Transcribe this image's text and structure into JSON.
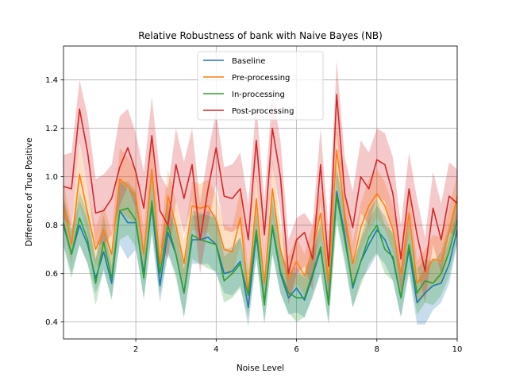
{
  "chart_data": {
    "type": "line",
    "title": "Relative Robustness of bank with Naive Bayes (NB)",
    "xlabel": "Noise Level",
    "ylabel": "Difference of True Positive",
    "xlim": [
      0.2,
      10.0
    ],
    "ylim": [
      0.33,
      1.54
    ],
    "xticks": [
      2,
      4,
      6,
      8,
      10
    ],
    "yticks": [
      0.4,
      0.6,
      0.8,
      1.0,
      1.2,
      1.4
    ],
    "grid": true,
    "legend_position": "top-center",
    "x": [
      0.2,
      0.4,
      0.6,
      0.8,
      1.0,
      1.2,
      1.4,
      1.6,
      1.8,
      2.0,
      2.2,
      2.4,
      2.6,
      2.8,
      3.0,
      3.2,
      3.4,
      3.6,
      3.8,
      4.0,
      4.2,
      4.4,
      4.6,
      4.8,
      5.0,
      5.2,
      5.4,
      5.6,
      5.8,
      6.0,
      6.2,
      6.4,
      6.6,
      6.8,
      7.0,
      7.2,
      7.4,
      7.6,
      7.8,
      8.0,
      8.2,
      8.4,
      8.6,
      8.8,
      9.0,
      9.2,
      9.4,
      9.6,
      9.8,
      10.0
    ],
    "series": [
      {
        "name": "Baseline",
        "color": "#1f77b4",
        "values": [
          0.8,
          0.68,
          0.8,
          0.72,
          0.58,
          0.69,
          0.56,
          0.86,
          0.81,
          0.81,
          0.6,
          0.88,
          0.55,
          0.77,
          0.68,
          0.52,
          0.74,
          0.74,
          0.75,
          0.72,
          0.6,
          0.61,
          0.65,
          0.46,
          0.76,
          0.48,
          0.79,
          0.6,
          0.5,
          0.54,
          0.49,
          0.59,
          0.7,
          0.48,
          0.94,
          0.76,
          0.54,
          0.65,
          0.72,
          0.78,
          0.74,
          0.66,
          0.5,
          0.7,
          0.48,
          0.52,
          0.55,
          0.56,
          0.64,
          0.78
        ],
        "lower": [
          0.72,
          0.6,
          0.72,
          0.64,
          0.52,
          0.61,
          0.5,
          0.72,
          0.66,
          0.7,
          0.5,
          0.76,
          0.48,
          0.68,
          0.6,
          0.42,
          0.64,
          0.64,
          0.64,
          0.6,
          0.52,
          0.51,
          0.55,
          0.38,
          0.66,
          0.4,
          0.68,
          0.52,
          0.43,
          0.44,
          0.42,
          0.5,
          0.6,
          0.4,
          0.83,
          0.66,
          0.46,
          0.57,
          0.62,
          0.68,
          0.64,
          0.57,
          0.42,
          0.6,
          0.39,
          0.39,
          0.45,
          0.48,
          0.56,
          0.72
        ],
        "upper": [
          0.9,
          0.78,
          0.9,
          0.82,
          0.66,
          0.79,
          0.63,
          0.98,
          0.95,
          0.93,
          0.72,
          1.0,
          0.63,
          0.87,
          0.78,
          0.62,
          0.84,
          0.84,
          0.86,
          0.84,
          0.7,
          0.71,
          0.75,
          0.55,
          0.86,
          0.58,
          0.9,
          0.7,
          0.6,
          0.63,
          0.58,
          0.68,
          0.8,
          0.57,
          1.04,
          0.86,
          0.63,
          0.74,
          0.82,
          0.88,
          0.84,
          0.76,
          0.58,
          0.8,
          0.57,
          0.62,
          0.66,
          0.64,
          0.74,
          0.86
        ]
      },
      {
        "name": "Pre-processing",
        "color": "#ff7f0e",
        "values": [
          0.88,
          0.72,
          1.01,
          0.85,
          0.7,
          0.78,
          0.68,
          0.99,
          0.96,
          0.92,
          0.68,
          1.03,
          0.64,
          0.92,
          0.8,
          0.64,
          0.88,
          0.87,
          0.88,
          0.82,
          0.7,
          0.69,
          0.83,
          0.52,
          0.91,
          0.56,
          0.95,
          0.7,
          0.58,
          0.65,
          0.59,
          0.7,
          0.85,
          0.57,
          1.11,
          0.85,
          0.64,
          0.79,
          0.88,
          0.93,
          0.88,
          0.78,
          0.6,
          0.85,
          0.56,
          0.6,
          0.66,
          0.65,
          0.77,
          0.92
        ],
        "lower": [
          0.79,
          0.64,
          0.89,
          0.76,
          0.62,
          0.69,
          0.6,
          0.86,
          0.83,
          0.81,
          0.58,
          0.9,
          0.55,
          0.81,
          0.7,
          0.55,
          0.78,
          0.77,
          0.77,
          0.71,
          0.61,
          0.59,
          0.72,
          0.44,
          0.8,
          0.47,
          0.83,
          0.61,
          0.5,
          0.56,
          0.51,
          0.6,
          0.74,
          0.49,
          0.98,
          0.75,
          0.55,
          0.69,
          0.77,
          0.83,
          0.78,
          0.69,
          0.52,
          0.75,
          0.47,
          0.51,
          0.56,
          0.56,
          0.68,
          0.83
        ],
        "upper": [
          0.98,
          0.81,
          1.13,
          0.95,
          0.79,
          0.88,
          0.77,
          1.12,
          1.08,
          1.03,
          0.78,
          1.16,
          0.74,
          1.03,
          0.9,
          0.74,
          0.98,
          0.97,
          0.99,
          0.93,
          0.8,
          0.79,
          0.94,
          0.61,
          1.02,
          0.66,
          1.07,
          0.8,
          0.67,
          0.75,
          0.68,
          0.8,
          0.95,
          0.66,
          1.22,
          0.96,
          0.73,
          0.89,
          0.99,
          1.03,
          0.98,
          0.88,
          0.69,
          0.95,
          0.65,
          0.7,
          0.76,
          0.75,
          0.87,
          1.01
        ]
      },
      {
        "name": "In-processing",
        "color": "#2ca02c",
        "values": [
          0.81,
          0.68,
          0.83,
          0.74,
          0.56,
          0.73,
          0.58,
          0.86,
          0.87,
          0.82,
          0.58,
          0.9,
          0.6,
          0.8,
          0.68,
          0.52,
          0.76,
          0.74,
          0.73,
          0.72,
          0.57,
          0.6,
          0.64,
          0.51,
          0.78,
          0.47,
          0.8,
          0.61,
          0.52,
          0.5,
          0.5,
          0.6,
          0.71,
          0.47,
          0.92,
          0.74,
          0.55,
          0.65,
          0.75,
          0.8,
          0.7,
          0.67,
          0.5,
          0.72,
          0.52,
          0.57,
          0.56,
          0.6,
          0.69,
          0.82
        ],
        "lower": [
          0.71,
          0.58,
          0.72,
          0.64,
          0.47,
          0.62,
          0.49,
          0.74,
          0.76,
          0.71,
          0.49,
          0.78,
          0.51,
          0.69,
          0.58,
          0.42,
          0.66,
          0.64,
          0.62,
          0.61,
          0.48,
          0.5,
          0.54,
          0.42,
          0.67,
          0.39,
          0.68,
          0.52,
          0.44,
          0.4,
          0.42,
          0.51,
          0.61,
          0.39,
          0.81,
          0.64,
          0.46,
          0.55,
          0.64,
          0.69,
          0.6,
          0.57,
          0.42,
          0.62,
          0.43,
          0.48,
          0.47,
          0.51,
          0.59,
          0.73
        ],
        "upper": [
          0.92,
          0.78,
          0.94,
          0.85,
          0.66,
          0.84,
          0.68,
          0.98,
          0.98,
          0.94,
          0.68,
          1.02,
          0.7,
          0.9,
          0.79,
          0.62,
          0.86,
          0.85,
          0.84,
          0.83,
          0.67,
          0.7,
          0.75,
          0.61,
          0.89,
          0.56,
          0.92,
          0.71,
          0.61,
          0.6,
          0.59,
          0.69,
          0.82,
          0.56,
          1.03,
          0.85,
          0.64,
          0.75,
          0.86,
          0.91,
          0.8,
          0.77,
          0.59,
          0.82,
          0.62,
          0.66,
          0.65,
          0.69,
          0.8,
          0.92
        ]
      },
      {
        "name": "Post-processing",
        "color": "#d62728",
        "values": [
          0.96,
          0.95,
          1.28,
          1.1,
          0.85,
          0.86,
          0.91,
          1.04,
          1.12,
          1.02,
          0.87,
          1.17,
          0.86,
          0.8,
          1.05,
          0.91,
          1.05,
          0.74,
          0.95,
          1.12,
          0.92,
          0.91,
          0.95,
          0.74,
          1.15,
          0.76,
          1.2,
          1.0,
          0.6,
          0.74,
          0.77,
          0.66,
          1.05,
          0.63,
          1.34,
          0.93,
          0.79,
          1.0,
          0.95,
          1.07,
          1.05,
          0.93,
          0.66,
          0.95,
          0.76,
          0.61,
          0.87,
          0.74,
          0.92,
          0.89
        ],
        "lower": [
          0.82,
          0.8,
          1.14,
          0.95,
          0.72,
          0.72,
          0.76,
          0.88,
          0.96,
          0.87,
          0.72,
          1.02,
          0.71,
          0.66,
          0.9,
          0.76,
          0.9,
          0.6,
          0.8,
          0.97,
          0.78,
          0.77,
          0.8,
          0.6,
          1.0,
          0.62,
          1.05,
          0.85,
          0.47,
          0.6,
          0.63,
          0.53,
          0.9,
          0.49,
          1.18,
          0.78,
          0.65,
          0.85,
          0.8,
          0.92,
          0.9,
          0.78,
          0.52,
          0.8,
          0.62,
          0.48,
          0.72,
          0.6,
          0.77,
          0.75
        ],
        "upper": [
          1.09,
          1.1,
          1.4,
          1.25,
          0.99,
          1.01,
          1.05,
          1.25,
          1.28,
          1.18,
          1.02,
          1.33,
          1.01,
          0.95,
          1.2,
          1.06,
          1.2,
          0.89,
          1.1,
          1.27,
          1.04,
          1.05,
          1.1,
          0.89,
          1.3,
          0.9,
          1.35,
          1.15,
          0.74,
          0.83,
          0.85,
          0.8,
          1.2,
          0.78,
          1.48,
          1.08,
          0.94,
          1.15,
          1.1,
          1.2,
          1.18,
          1.08,
          0.8,
          1.1,
          0.91,
          0.75,
          1.02,
          0.89,
          1.06,
          1.03
        ]
      }
    ]
  }
}
